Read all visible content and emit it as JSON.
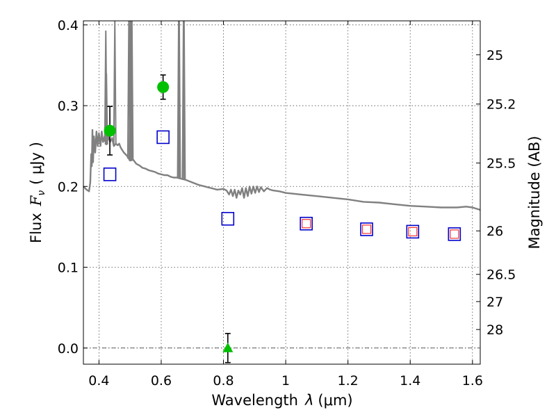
{
  "chart_data": {
    "type": "scatter",
    "xlabel_prefix": "Wavelength",
    "xlabel_symbol": "λ",
    "xlabel_unit": "(μm)",
    "ylabel_prefix": "Flux",
    "ylabel_symbol": "F",
    "ylabel_subscript": "ν",
    "ylabel_unit": "( μJy )",
    "y2label": "Magnitude (AB)",
    "xlim": [
      0.35,
      1.625
    ],
    "ylim": [
      -0.02,
      0.405
    ],
    "xticks": [
      0.4,
      0.6,
      0.8,
      1.0,
      1.2,
      1.4,
      1.6
    ],
    "xtick_labels": [
      "0.4",
      "0.6",
      "0.8",
      "1",
      "1.2",
      "1.4",
      "1.6"
    ],
    "yticks": [
      0.0,
      0.1,
      0.2,
      0.3,
      0.4
    ],
    "ytick_labels": [
      "0.0",
      "0.1",
      "0.2",
      "0.3",
      "0.4"
    ],
    "y2ticks": [
      {
        "label": "25",
        "flux": 0.363
      },
      {
        "label": "25.2",
        "flux": 0.302
      },
      {
        "label": "25.5",
        "flux": 0.229
      },
      {
        "label": "26",
        "flux": 0.145
      },
      {
        "label": "26.5",
        "flux": 0.0912
      },
      {
        "label": "27",
        "flux": 0.0575
      },
      {
        "label": "28",
        "flux": 0.0229
      }
    ],
    "grid": true,
    "colors": {
      "observed": "#00c000",
      "model_photometry": "#0000cc",
      "model_inner": "#ff3030",
      "spectrum": "#808080",
      "errorbar": "#000000"
    },
    "observed": [
      {
        "x": 0.435,
        "y": 0.269,
        "err": 0.03
      },
      {
        "x": 0.606,
        "y": 0.323,
        "err": 0.015
      }
    ],
    "upper_limit": [
      {
        "x": 0.814,
        "y": 0.0,
        "err": 0.018
      }
    ],
    "model_photometry": [
      {
        "x": 0.435,
        "y": 0.215
      },
      {
        "x": 0.606,
        "y": 0.261
      },
      {
        "x": 0.814,
        "y": 0.16
      },
      {
        "x": 1.066,
        "y": 0.154
      },
      {
        "x": 1.26,
        "y": 0.147
      },
      {
        "x": 1.408,
        "y": 0.144
      },
      {
        "x": 1.542,
        "y": 0.141
      }
    ],
    "model_inner": [
      {
        "x": 1.066,
        "y": 0.154
      },
      {
        "x": 1.26,
        "y": 0.147
      },
      {
        "x": 1.408,
        "y": 0.144
      },
      {
        "x": 1.542,
        "y": 0.141
      }
    ],
    "spectrum": [
      [
        0.35,
        0.2
      ],
      [
        0.36,
        0.196
      ],
      [
        0.368,
        0.194
      ],
      [
        0.372,
        0.205
      ],
      [
        0.375,
        0.24
      ],
      [
        0.377,
        0.225
      ],
      [
        0.379,
        0.27
      ],
      [
        0.381,
        0.23
      ],
      [
        0.384,
        0.262
      ],
      [
        0.388,
        0.242
      ],
      [
        0.392,
        0.268
      ],
      [
        0.396,
        0.25
      ],
      [
        0.4,
        0.266
      ],
      [
        0.405,
        0.25
      ],
      [
        0.409,
        0.268
      ],
      [
        0.413,
        0.255
      ],
      [
        0.418,
        0.262
      ],
      [
        0.424,
        0.252
      ],
      [
        0.43,
        0.262
      ],
      [
        0.436,
        0.255
      ],
      [
        0.442,
        0.26
      ],
      [
        0.448,
        0.25
      ],
      [
        0.454,
        0.253
      ],
      [
        0.46,
        0.251
      ],
      [
        0.465,
        0.253
      ],
      [
        0.47,
        0.248
      ],
      [
        0.48,
        0.242
      ],
      [
        0.49,
        0.238
      ],
      [
        0.5,
        0.232
      ],
      [
        0.51,
        0.233
      ],
      [
        0.52,
        0.228
      ],
      [
        0.53,
        0.226
      ],
      [
        0.54,
        0.223
      ],
      [
        0.55,
        0.222
      ],
      [
        0.56,
        0.22
      ],
      [
        0.57,
        0.219
      ],
      [
        0.58,
        0.218
      ],
      [
        0.59,
        0.216
      ],
      [
        0.6,
        0.215
      ],
      [
        0.61,
        0.214
      ],
      [
        0.62,
        0.214
      ],
      [
        0.63,
        0.212
      ],
      [
        0.64,
        0.211
      ],
      [
        0.65,
        0.211
      ],
      [
        0.66,
        0.21
      ],
      [
        0.68,
        0.208
      ],
      [
        0.7,
        0.205
      ],
      [
        0.72,
        0.202
      ],
      [
        0.74,
        0.2
      ],
      [
        0.76,
        0.198
      ],
      [
        0.78,
        0.196
      ],
      [
        0.8,
        0.197
      ],
      [
        0.81,
        0.195
      ],
      [
        0.818,
        0.19
      ],
      [
        0.824,
        0.196
      ],
      [
        0.83,
        0.188
      ],
      [
        0.836,
        0.196
      ],
      [
        0.842,
        0.186
      ],
      [
        0.848,
        0.195
      ],
      [
        0.854,
        0.19
      ],
      [
        0.86,
        0.198
      ],
      [
        0.866,
        0.186
      ],
      [
        0.872,
        0.198
      ],
      [
        0.878,
        0.188
      ],
      [
        0.884,
        0.2
      ],
      [
        0.89,
        0.191
      ],
      [
        0.896,
        0.2
      ],
      [
        0.902,
        0.192
      ],
      [
        0.908,
        0.2
      ],
      [
        0.914,
        0.193
      ],
      [
        0.92,
        0.199
      ],
      [
        0.93,
        0.194
      ],
      [
        0.94,
        0.198
      ],
      [
        0.95,
        0.196
      ],
      [
        0.96,
        0.195
      ],
      [
        0.98,
        0.194
      ],
      [
        1.0,
        0.192
      ],
      [
        1.05,
        0.19
      ],
      [
        1.1,
        0.188
      ],
      [
        1.15,
        0.186
      ],
      [
        1.2,
        0.184
      ],
      [
        1.25,
        0.181
      ],
      [
        1.3,
        0.18
      ],
      [
        1.35,
        0.178
      ],
      [
        1.4,
        0.176
      ],
      [
        1.45,
        0.175
      ],
      [
        1.5,
        0.174
      ],
      [
        1.55,
        0.174
      ],
      [
        1.58,
        0.175
      ],
      [
        1.6,
        0.174
      ],
      [
        1.625,
        0.171
      ]
    ],
    "emission_lines": [
      {
        "x": 0.422,
        "peak": 0.393
      },
      {
        "x": 0.424,
        "peak": 0.34
      },
      {
        "x": 0.451,
        "peak": 0.42
      },
      {
        "x": 0.496,
        "peak": 0.42
      },
      {
        "x": 0.5006,
        "peak": 0.42
      },
      {
        "x": 0.503,
        "peak": 0.42
      },
      {
        "x": 0.506,
        "peak": 0.42
      },
      {
        "x": 0.656,
        "peak": 0.42
      },
      {
        "x": 0.658,
        "peak": 0.42
      },
      {
        "x": 0.6715,
        "peak": 0.42
      },
      {
        "x": 0.6735,
        "peak": 0.42
      }
    ]
  }
}
